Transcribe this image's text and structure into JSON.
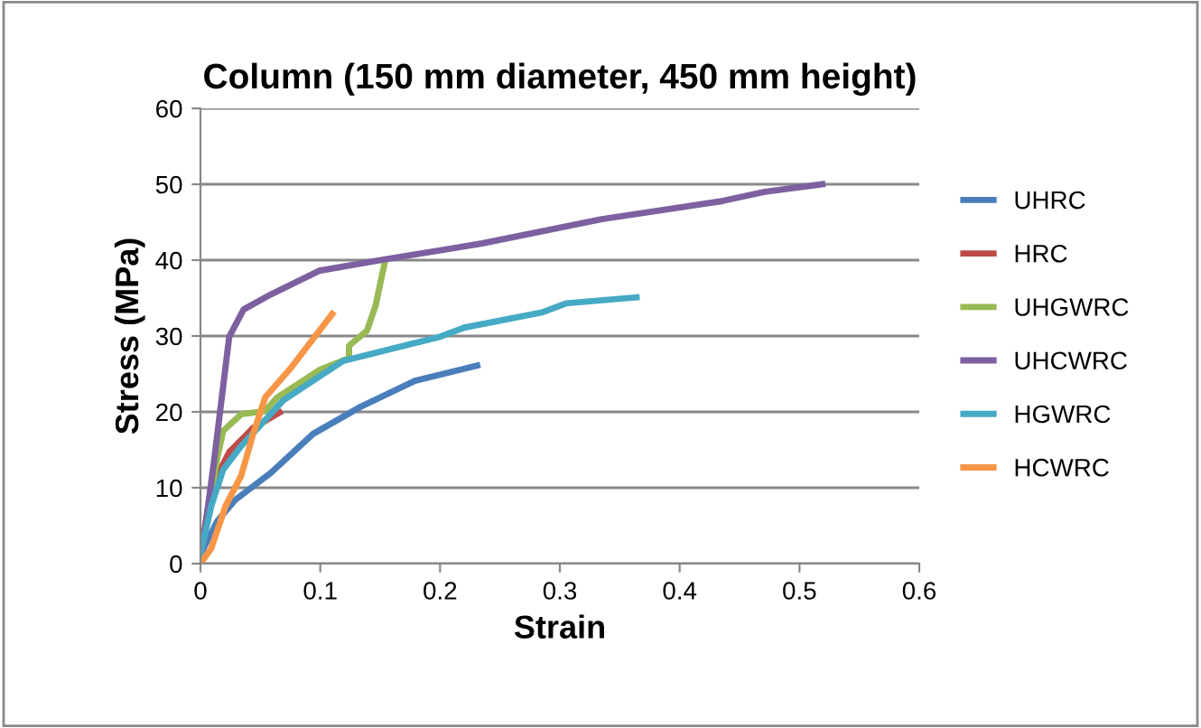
{
  "chart_data": {
    "type": "line",
    "title": "Column (150 mm diameter, 450 mm height)",
    "xlabel": "Strain",
    "ylabel": "Stress (MPa)",
    "xlim": [
      0,
      0.6
    ],
    "xticks": [
      0,
      0.1,
      0.2,
      0.3,
      0.4,
      0.5,
      0.6
    ],
    "ylim": [
      0,
      60
    ],
    "yticks": [
      0,
      10,
      20,
      30,
      40,
      50,
      60
    ],
    "grid": "y",
    "legend": "right",
    "series": [
      {
        "name": "UHRC",
        "color": "#4a7ebb",
        "x": [
          0,
          0.014,
          0.029,
          0.059,
          0.094,
          0.134,
          0.179,
          0.231
        ],
        "values": [
          1.2,
          5.6,
          8.4,
          12,
          17.1,
          20.7,
          24.1,
          26.1
        ]
      },
      {
        "name": "HRC",
        "color": "#be4b48",
        "x": [
          0,
          0.009,
          0.024,
          0.044,
          0.066
        ],
        "values": [
          1.2,
          10,
          14.7,
          17.9,
          19.9
        ]
      },
      {
        "name": "UHGWRC",
        "color": "#98b954",
        "x": [
          0,
          0.014,
          0.019,
          0.034,
          0.054,
          0.064,
          0.099,
          0.124,
          0.124,
          0.139,
          0.146,
          0.154
        ],
        "values": [
          0.8,
          13.9,
          17.5,
          19.7,
          20.1,
          21.9,
          25.5,
          27.1,
          28.7,
          30.7,
          33.9,
          39.8
        ]
      },
      {
        "name": "UHCWRC",
        "color": "#7d60a0",
        "x": [
          0,
          0.011,
          0.024,
          0.036,
          0.059,
          0.099,
          0.154,
          0.235,
          0.335,
          0.436,
          0.471,
          0.519
        ],
        "values": [
          0,
          13.1,
          29.9,
          33.5,
          35.5,
          38.6,
          40.1,
          42.2,
          45.4,
          47.8,
          49,
          50
        ]
      },
      {
        "name": "HGWRC",
        "color": "#46aac5",
        "x": [
          0,
          0.009,
          0.019,
          0.034,
          0.069,
          0.119,
          0.159,
          0.2,
          0.22,
          0.285,
          0.305,
          0.364
        ],
        "values": [
          1.2,
          7.6,
          12.4,
          15.5,
          21.5,
          26.7,
          28.3,
          29.9,
          31.1,
          33.1,
          34.3,
          35.1
        ]
      },
      {
        "name": "HCWRC",
        "color": "#f79646",
        "x": [
          0,
          0.009,
          0.021,
          0.034,
          0.044,
          0.054,
          0.076,
          0.11
        ],
        "values": [
          0,
          2,
          7.6,
          11.6,
          17.1,
          21.9,
          25.9,
          32.9
        ]
      }
    ]
  }
}
